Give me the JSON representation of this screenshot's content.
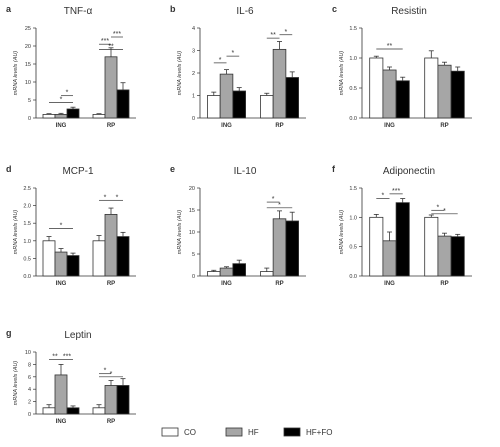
{
  "figure": {
    "legend": [
      {
        "label": "CO",
        "fill": "#ffffff"
      },
      {
        "label": "HF",
        "fill": "#a6a6a6"
      },
      {
        "label": "HF+FO",
        "fill": "#000000"
      }
    ],
    "colors": {
      "CO": "#ffffff",
      "HF": "#a6a6a6",
      "HF+FO": "#000000",
      "stroke": "#333333"
    },
    "legend_placement": "bottom-center"
  },
  "chart_data": [
    {
      "panel": "a",
      "type": "bar",
      "title": "TNF-α",
      "ylabel": "mRNA levels (AU)",
      "ylim": [
        0,
        25
      ],
      "yticks": [
        "0",
        "5",
        "10",
        "15",
        "20",
        "25"
      ],
      "categories": [
        "ING",
        "RP"
      ],
      "series": [
        {
          "name": "CO",
          "values": [
            1.0,
            1.0
          ],
          "errors": [
            0.2,
            0.2
          ]
        },
        {
          "name": "HF",
          "values": [
            1.0,
            17.0
          ],
          "errors": [
            0.3,
            2.5
          ]
        },
        {
          "name": "HF+FO",
          "values": [
            2.5,
            7.8
          ],
          "errors": [
            0.5,
            2.0
          ]
        }
      ],
      "significance": [
        {
          "group": 0,
          "from": 0,
          "to": 2,
          "label": "*",
          "y": 4.3
        },
        {
          "group": 0,
          "from": 1,
          "to": 2,
          "label": "*",
          "y": 6.2
        },
        {
          "group": 1,
          "from": 0,
          "to": 1,
          "label": "***",
          "y": 20.5
        },
        {
          "group": 1,
          "from": 0,
          "to": 2,
          "label": "**",
          "y": 19.0
        },
        {
          "group": 1,
          "from": 1,
          "to": 2,
          "label": "***",
          "y": 22.5
        }
      ]
    },
    {
      "panel": "b",
      "type": "bar",
      "title": "IL-6",
      "ylabel": "mRNA levels (AU)",
      "ylim": [
        0,
        4
      ],
      "yticks": [
        "0",
        "1",
        "2",
        "3",
        "4"
      ],
      "categories": [
        "ING",
        "RP"
      ],
      "series": [
        {
          "name": "CO",
          "values": [
            1.0,
            1.0
          ],
          "errors": [
            0.15,
            0.1
          ]
        },
        {
          "name": "HF",
          "values": [
            1.95,
            3.05
          ],
          "errors": [
            0.2,
            0.35
          ]
        },
        {
          "name": "HF+FO",
          "values": [
            1.2,
            1.8
          ],
          "errors": [
            0.15,
            0.25
          ]
        }
      ],
      "significance": [
        {
          "group": 0,
          "from": 0,
          "to": 1,
          "label": "*",
          "y": 2.45
        },
        {
          "group": 0,
          "from": 1,
          "to": 2,
          "label": "*",
          "y": 2.75
        },
        {
          "group": 1,
          "from": 0,
          "to": 1,
          "label": "**",
          "y": 3.55
        },
        {
          "group": 1,
          "from": 1,
          "to": 2,
          "label": "*",
          "y": 3.7
        }
      ]
    },
    {
      "panel": "c",
      "type": "bar",
      "title": "Resistin",
      "ylabel": "mRNA levels (AU)",
      "ylim": [
        0,
        1.5
      ],
      "yticks": [
        "0.0",
        "0.5",
        "1.0",
        "1.5"
      ],
      "categories": [
        "ING",
        "RP"
      ],
      "series": [
        {
          "name": "CO",
          "values": [
            1.0,
            1.0
          ],
          "errors": [
            0.03,
            0.12
          ]
        },
        {
          "name": "HF",
          "values": [
            0.8,
            0.88
          ],
          "errors": [
            0.05,
            0.05
          ]
        },
        {
          "name": "HF+FO",
          "values": [
            0.62,
            0.78
          ],
          "errors": [
            0.06,
            0.07
          ]
        }
      ],
      "significance": [
        {
          "group": 0,
          "from": 0,
          "to": 2,
          "label": "**",
          "y": 1.15
        }
      ]
    },
    {
      "panel": "d",
      "type": "bar",
      "title": "MCP-1",
      "ylabel": "mRNA levels (AU)",
      "ylim": [
        0,
        2.5
      ],
      "yticks": [
        "0.0",
        "0.5",
        "1.0",
        "1.5",
        "2.0",
        "2.5"
      ],
      "categories": [
        "ING",
        "RP"
      ],
      "series": [
        {
          "name": "CO",
          "values": [
            1.0,
            1.0
          ],
          "errors": [
            0.12,
            0.15
          ]
        },
        {
          "name": "HF",
          "values": [
            0.68,
            1.75
          ],
          "errors": [
            0.1,
            0.18
          ]
        },
        {
          "name": "HF+FO",
          "values": [
            0.58,
            1.12
          ],
          "errors": [
            0.07,
            0.12
          ]
        }
      ],
      "significance": [
        {
          "group": 0,
          "from": 0,
          "to": 2,
          "label": "*",
          "y": 1.35
        },
        {
          "group": 1,
          "from": 0,
          "to": 1,
          "label": "*",
          "y": 2.15
        },
        {
          "group": 1,
          "from": 1,
          "to": 2,
          "label": "*",
          "y": 2.15
        }
      ]
    },
    {
      "panel": "e",
      "type": "bar",
      "title": "IL-10",
      "ylabel": "mRNA levels (AU)",
      "ylim": [
        0,
        20
      ],
      "yticks": [
        "0",
        "5",
        "10",
        "15",
        "20"
      ],
      "categories": [
        "ING",
        "RP"
      ],
      "series": [
        {
          "name": "CO",
          "values": [
            1.0,
            1.0
          ],
          "errors": [
            0.3,
            0.8
          ]
        },
        {
          "name": "HF",
          "values": [
            1.8,
            13.0
          ],
          "errors": [
            0.3,
            1.8
          ]
        },
        {
          "name": "HF+FO",
          "values": [
            2.8,
            12.5
          ],
          "errors": [
            0.8,
            2.0
          ]
        }
      ],
      "significance": [
        {
          "group": 1,
          "from": 0,
          "to": 1,
          "label": "*",
          "y": 16.8
        },
        {
          "group": 1,
          "from": 0,
          "to": 2,
          "label": "*",
          "y": 15.5
        }
      ]
    },
    {
      "panel": "f",
      "type": "bar",
      "title": "Adiponectin",
      "ylabel": "mRNA levels (AU)",
      "ylim": [
        0,
        1.5
      ],
      "yticks": [
        "0.0",
        "0.5",
        "1.0",
        "1.5"
      ],
      "categories": [
        "ING",
        "RP"
      ],
      "series": [
        {
          "name": "CO",
          "values": [
            1.0,
            1.0
          ],
          "errors": [
            0.05,
            0.04
          ]
        },
        {
          "name": "HF",
          "values": [
            0.6,
            0.68
          ],
          "errors": [
            0.15,
            0.05
          ]
        },
        {
          "name": "HF+FO",
          "values": [
            1.25,
            0.67
          ],
          "errors": [
            0.07,
            0.04
          ]
        }
      ],
      "significance": [
        {
          "group": 0,
          "from": 0,
          "to": 1,
          "label": "*",
          "y": 1.32
        },
        {
          "group": 0,
          "from": 1,
          "to": 2,
          "label": "***",
          "y": 1.4
        },
        {
          "group": 1,
          "from": 0,
          "to": 1,
          "label": "*",
          "y": 1.12
        },
        {
          "group": 1,
          "from": 0,
          "to": 2,
          "label": "*",
          "y": 1.06
        }
      ]
    },
    {
      "panel": "g",
      "type": "bar",
      "title": "Leptin",
      "ylabel": "mRNA levels (AU)",
      "ylim": [
        0,
        10
      ],
      "yticks": [
        "0",
        "2",
        "4",
        "6",
        "8",
        "10"
      ],
      "categories": [
        "ING",
        "RP"
      ],
      "series": [
        {
          "name": "CO",
          "values": [
            1.0,
            1.0
          ],
          "errors": [
            0.5,
            0.5
          ]
        },
        {
          "name": "HF",
          "values": [
            6.3,
            4.6
          ],
          "errors": [
            1.7,
            0.8
          ]
        },
        {
          "name": "HF+FO",
          "values": [
            1.0,
            4.6
          ],
          "errors": [
            0.3,
            1.1
          ]
        }
      ],
      "significance": [
        {
          "group": 0,
          "from": 0,
          "to": 1,
          "label": "**",
          "y": 8.8
        },
        {
          "group": 0,
          "from": 1,
          "to": 2,
          "label": "***",
          "y": 8.8
        },
        {
          "group": 1,
          "from": 0,
          "to": 1,
          "label": "*",
          "y": 6.5
        },
        {
          "group": 1,
          "from": 0,
          "to": 2,
          "label": "*",
          "y": 6.0
        }
      ]
    }
  ]
}
